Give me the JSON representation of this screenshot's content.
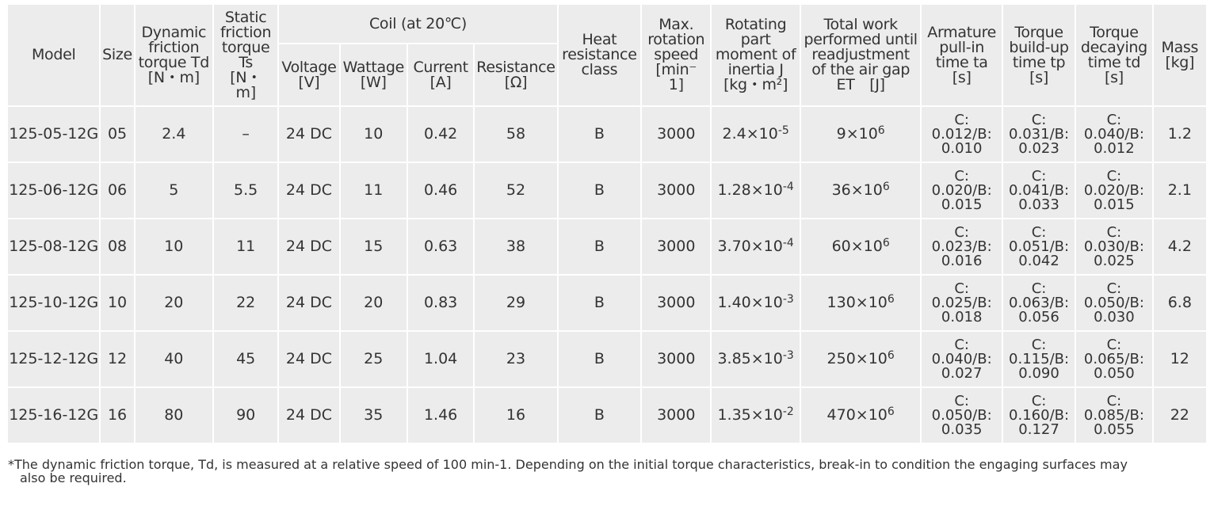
{
  "headers": {
    "model": "Model",
    "size": "Size",
    "dynamic": [
      "Dynamic",
      "friction",
      "torque Td",
      "[N・m]"
    ],
    "static": [
      "Static",
      "friction",
      "torque",
      "Ts",
      "[N・",
      "m]"
    ],
    "coil": "Coil (at 20℃)",
    "voltage": [
      "Voltage",
      "[V]"
    ],
    "wattage": [
      "Wattage",
      "[W]"
    ],
    "current": [
      "Current",
      "[A]"
    ],
    "resistance": [
      "Resistance",
      "[Ω]"
    ],
    "heat": [
      "Heat",
      "resistance",
      "class"
    ],
    "maxrot": [
      "Max.",
      "rotation",
      "speed",
      "[min⁻",
      "1]"
    ],
    "inertia": [
      "Rotating",
      "part",
      "moment of",
      "inertia J",
      "[kg・m²]"
    ],
    "work": [
      "Total work",
      "performed until",
      "readjustment",
      "of the air gap",
      "ET　[J]"
    ],
    "armature": [
      "Armature",
      "pull-in",
      "time ta",
      "[s]"
    ],
    "buildup": [
      "Torque",
      "build-up",
      "time tp",
      "[s]"
    ],
    "decay": [
      "Torque",
      "decaying",
      "time td",
      "[s]"
    ],
    "mass": [
      "Mass",
      "[kg]"
    ]
  },
  "rows": [
    {
      "model": "125-05-12G",
      "size": "05",
      "td": "2.4",
      "ts": "–",
      "voltage": "24 DC",
      "wattage": "10",
      "current": "0.42",
      "resistance": "58",
      "heat": "B",
      "speed": "3000",
      "inertia_base": "2.4×10",
      "inertia_exp": "-5",
      "work_base": "9×10",
      "work_exp": "6",
      "ta": [
        "C:",
        "0.012/B:",
        "0.010"
      ],
      "tp": [
        "C:",
        "0.031/B:",
        "0.023"
      ],
      "tdec": [
        "C:",
        "0.040/B:",
        "0.012"
      ],
      "mass": "1.2"
    },
    {
      "model": "125-06-12G",
      "size": "06",
      "td": "5",
      "ts": "5.5",
      "voltage": "24 DC",
      "wattage": "11",
      "current": "0.46",
      "resistance": "52",
      "heat": "B",
      "speed": "3000",
      "inertia_base": "1.28×10",
      "inertia_exp": "-4",
      "work_base": "36×10",
      "work_exp": "6",
      "ta": [
        "C:",
        "0.020/B:",
        "0.015"
      ],
      "tp": [
        "C:",
        "0.041/B:",
        "0.033"
      ],
      "tdec": [
        "C:",
        "0.020/B:",
        "0.015"
      ],
      "mass": "2.1"
    },
    {
      "model": "125-08-12G",
      "size": "08",
      "td": "10",
      "ts": "11",
      "voltage": "24 DC",
      "wattage": "15",
      "current": "0.63",
      "resistance": "38",
      "heat": "B",
      "speed": "3000",
      "inertia_base": "3.70×10",
      "inertia_exp": "-4",
      "work_base": "60×10",
      "work_exp": "6",
      "ta": [
        "C:",
        "0.023/B:",
        "0.016"
      ],
      "tp": [
        "C:",
        "0.051/B:",
        "0.042"
      ],
      "tdec": [
        "C:",
        "0.030/B:",
        "0.025"
      ],
      "mass": "4.2"
    },
    {
      "model": "125-10-12G",
      "size": "10",
      "td": "20",
      "ts": "22",
      "voltage": "24 DC",
      "wattage": "20",
      "current": "0.83",
      "resistance": "29",
      "heat": "B",
      "speed": "3000",
      "inertia_base": "1.40×10",
      "inertia_exp": "-3",
      "work_base": "130×10",
      "work_exp": "6",
      "ta": [
        "C:",
        "0.025/B:",
        "0.018"
      ],
      "tp": [
        "C:",
        "0.063/B:",
        "0.056"
      ],
      "tdec": [
        "C:",
        "0.050/B:",
        "0.030"
      ],
      "mass": "6.8"
    },
    {
      "model": "125-12-12G",
      "size": "12",
      "td": "40",
      "ts": "45",
      "voltage": "24 DC",
      "wattage": "25",
      "current": "1.04",
      "resistance": "23",
      "heat": "B",
      "speed": "3000",
      "inertia_base": "3.85×10",
      "inertia_exp": "-3",
      "work_base": "250×10",
      "work_exp": "6",
      "ta": [
        "C:",
        "0.040/B:",
        "0.027"
      ],
      "tp": [
        "C:",
        "0.115/B:",
        "0.090"
      ],
      "tdec": [
        "C:",
        "0.065/B:",
        "0.050"
      ],
      "mass": "12"
    },
    {
      "model": "125-16-12G",
      "size": "16",
      "td": "80",
      "ts": "90",
      "voltage": "24 DC",
      "wattage": "35",
      "current": "1.46",
      "resistance": "16",
      "heat": "B",
      "speed": "3000",
      "inertia_base": "1.35×10",
      "inertia_exp": "-2",
      "work_base": "470×10",
      "work_exp": "6",
      "ta": [
        "C:",
        "0.050/B:",
        "0.035"
      ],
      "tp": [
        "C:",
        "0.160/B:",
        "0.127"
      ],
      "tdec": [
        "C:",
        "0.085/B:",
        "0.055"
      ],
      "mass": "22"
    }
  ],
  "note": {
    "line1": "*The dynamic friction torque, Td, is measured at a relative speed of 100 min-1. Depending on the initial torque characteristics, break-in to condition the engaging surfaces may",
    "line2": "also be required."
  }
}
